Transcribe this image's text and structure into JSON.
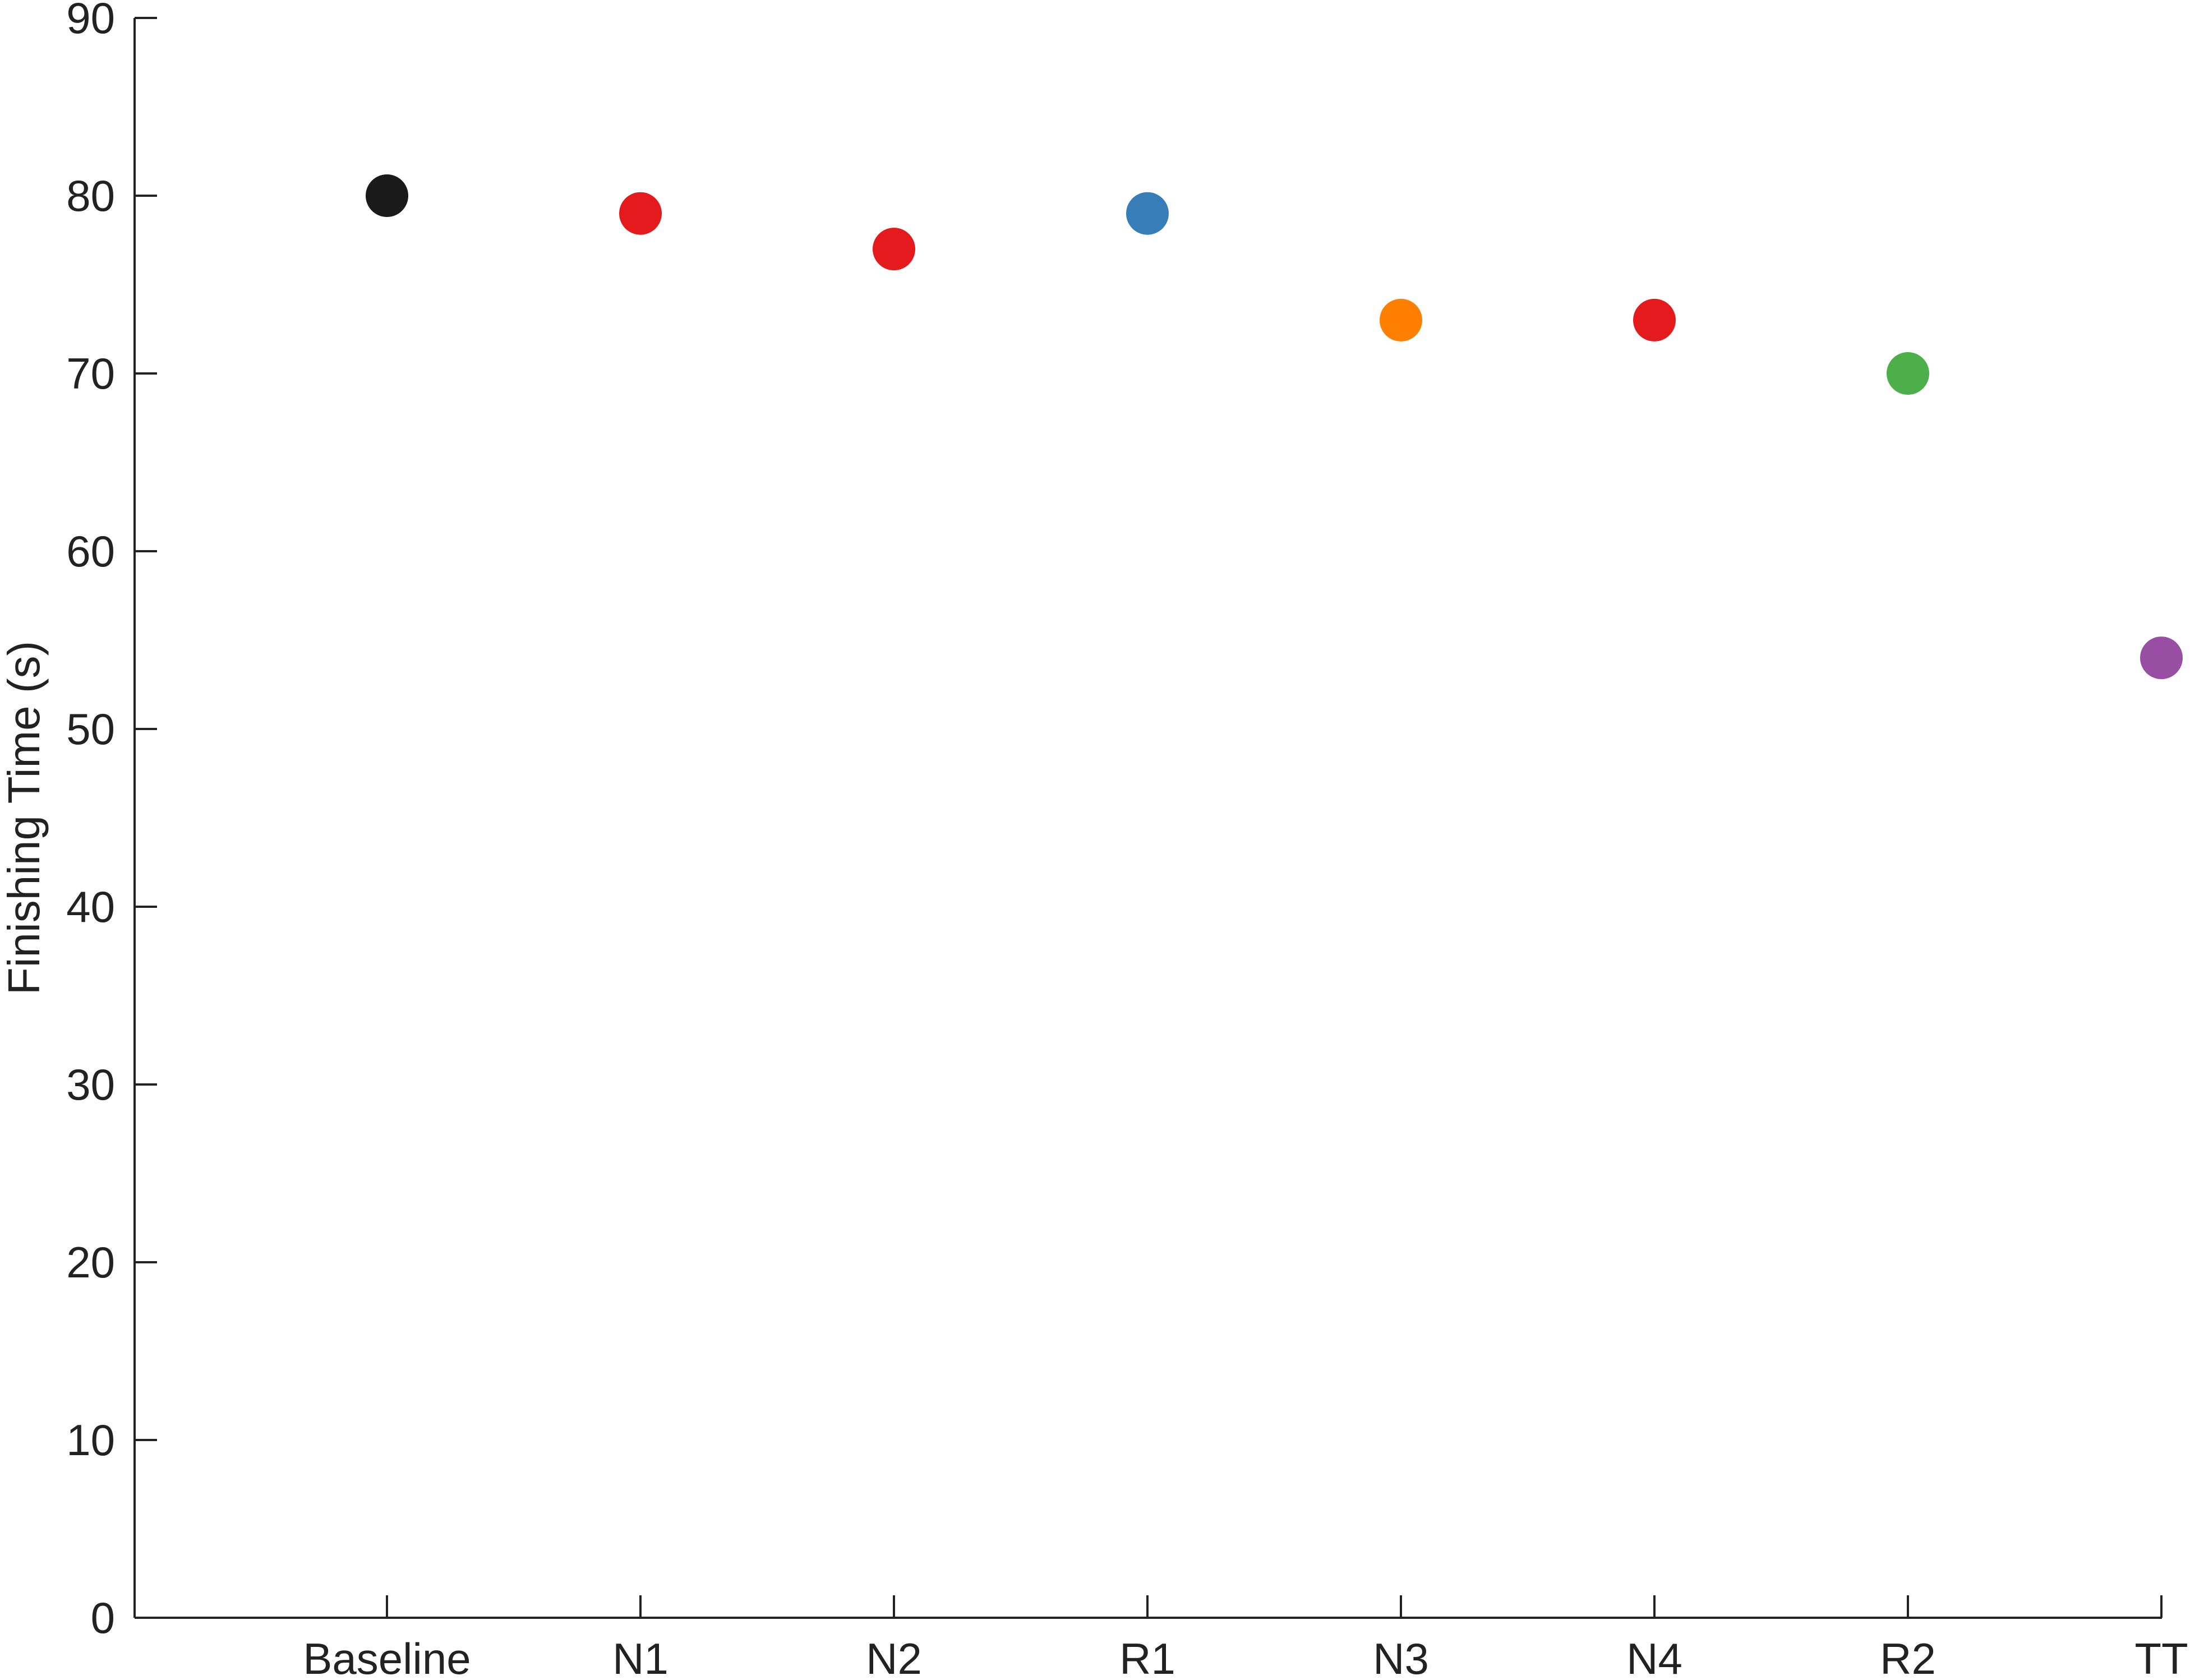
{
  "chart_data": {
    "type": "scatter",
    "title": "",
    "xlabel": "",
    "ylabel": "Finishing Time (s)",
    "categories": [
      "Baseline",
      "N1",
      "N2",
      "R1",
      "N3",
      "N4",
      "R2",
      "TT"
    ],
    "values": [
      80,
      79,
      77,
      79,
      73,
      73,
      70,
      54
    ],
    "point_colors": [
      "#1a1a1a",
      "#e41a1c",
      "#e41a1c",
      "#377eb8",
      "#ff7f00",
      "#e41a1c",
      "#4daf4a",
      "#984ea3"
    ],
    "ylim": [
      0,
      90
    ],
    "yticks": [
      0,
      10,
      20,
      30,
      40,
      50,
      60,
      70,
      80,
      90
    ],
    "grid": false,
    "legend": "none"
  }
}
